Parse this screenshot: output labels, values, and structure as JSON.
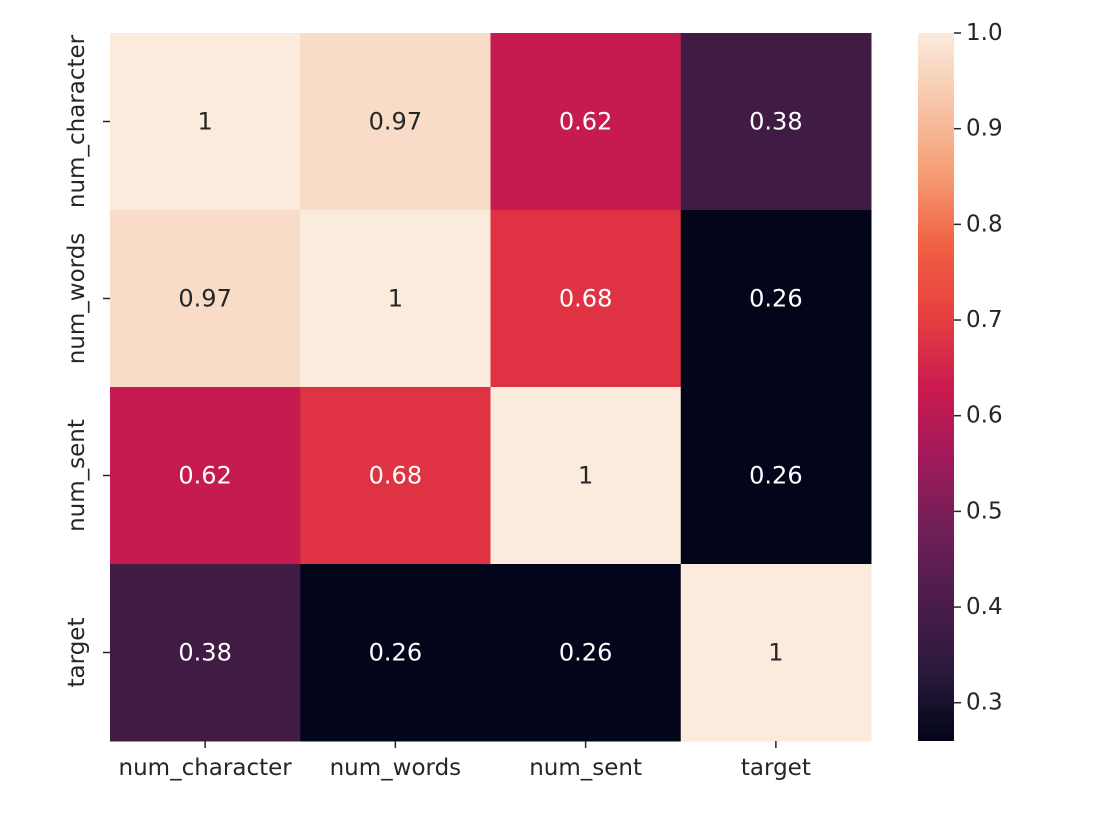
{
  "chart_data": {
    "type": "heatmap",
    "title": "",
    "xlabel": "",
    "ylabel": "",
    "x_labels": [
      "num_character",
      "num_words",
      "num_sent",
      "target"
    ],
    "y_labels": [
      "num_character",
      "num_words",
      "num_sent",
      "target"
    ],
    "values": [
      [
        1.0,
        0.97,
        0.62,
        0.38
      ],
      [
        0.97,
        1.0,
        0.68,
        0.26
      ],
      [
        0.62,
        0.68,
        1.0,
        0.26
      ],
      [
        0.38,
        0.26,
        0.26,
        1.0
      ]
    ],
    "annotations": [
      [
        "1",
        "0.97",
        "0.62",
        "0.38"
      ],
      [
        "0.97",
        "1",
        "0.68",
        "0.26"
      ],
      [
        "0.62",
        "0.68",
        "1",
        "0.26"
      ],
      [
        "0.38",
        "0.26",
        "0.26",
        "1"
      ]
    ],
    "colorbar": {
      "vmin": 0.26,
      "vmax": 1.0,
      "ticks": [
        0.3,
        0.4,
        0.5,
        0.6,
        0.7,
        0.8,
        0.9,
        1.0
      ],
      "tick_labels": [
        "0.3",
        "0.4",
        "0.5",
        "0.6",
        "0.7",
        "0.8",
        "0.9",
        "1.0"
      ],
      "colormap": "rocket",
      "colors": [
        "#03051a",
        "#2b1a3c",
        "#4c1d4b",
        "#701f57",
        "#a11a5b",
        "#cb1b4f",
        "#e83f3f",
        "#f06043",
        "#f69c73",
        "#f7c5a8",
        "#faebdd"
      ]
    }
  }
}
